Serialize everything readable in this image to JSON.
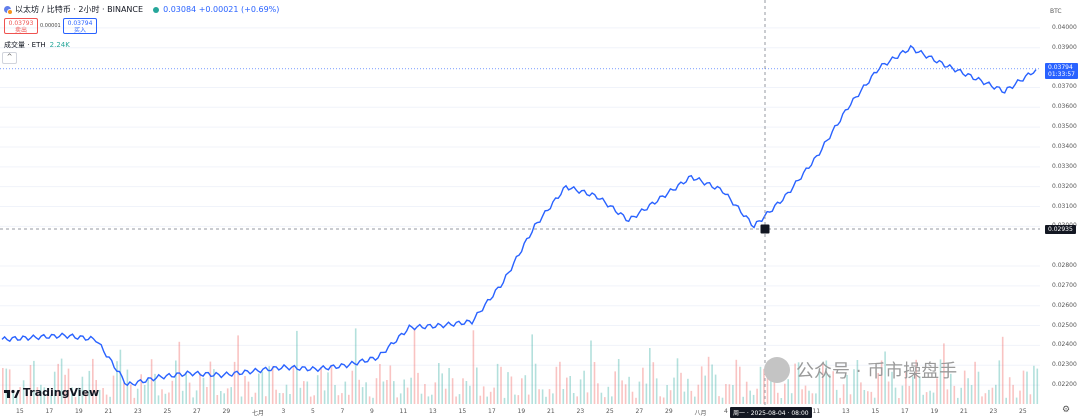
{
  "legend": {
    "symbol": "以太坊 / 比特币 · 2小时 · BINANCE",
    "ohlc": "0.03084 +0.00021 (+0.69%)",
    "sell_price": "0.03793",
    "sell_label": "卖出",
    "spread": "0.00001",
    "buy_price": "0.03794",
    "buy_label": "买入",
    "volume_label": "成交量 · ETH",
    "volume_value": "2.24K",
    "collapse_glyph": "^"
  },
  "colors": {
    "line": "#2962ff",
    "up": "#26a69a",
    "down": "#ef5350",
    "cursor_tag": "#131722",
    "price_tag": "#2962ff"
  },
  "price_axis": {
    "currency": "BTC",
    "ticks": [
      "0.04000",
      "0.03900",
      "0.03700",
      "0.03600",
      "0.03500",
      "0.03400",
      "0.03300",
      "0.03200",
      "0.03100",
      "0.03000",
      "0.02800",
      "0.02700",
      "0.02600",
      "0.02500",
      "0.02400",
      "0.02300",
      "0.02200"
    ],
    "cursor_price": "0.02935",
    "last_price": "0.03794",
    "countdown": "01:33:57"
  },
  "time_axis": {
    "ticks": [
      "15",
      "17",
      "19",
      "21",
      "23",
      "25",
      "27",
      "29",
      "七月",
      "3",
      "5",
      "7",
      "9",
      "11",
      "13",
      "15",
      "17",
      "19",
      "21",
      "23",
      "25",
      "27",
      "29",
      "八月",
      "4",
      "6",
      "9",
      "11",
      "13",
      "15",
      "17",
      "19",
      "21",
      "23",
      "25"
    ],
    "cursor_label": "周一 · 2025-08-04 · 08:00"
  },
  "branding": {
    "logo_text": "TradingView",
    "watermark": "公众号 · 币市操盘手",
    "settings_icon": "gear-icon"
  },
  "chart_data": {
    "type": "line",
    "title": "以太坊 / 比特币 · 2小时 · BINANCE",
    "x": [
      "06-15",
      "06-17",
      "06-19",
      "06-21",
      "06-23",
      "06-25",
      "06-27",
      "06-29",
      "07-01",
      "07-03",
      "07-05",
      "07-07",
      "07-09",
      "07-11",
      "07-13",
      "07-15",
      "07-17",
      "07-19",
      "07-21",
      "07-23",
      "07-25",
      "07-27",
      "07-29",
      "08-01",
      "08-04",
      "08-06",
      "08-09",
      "08-11",
      "08-13",
      "08-15",
      "08-17",
      "08-19",
      "08-21",
      "08-23"
    ],
    "y": [
      0.0243,
      0.0244,
      0.0245,
      0.0243,
      0.022,
      0.0224,
      0.0226,
      0.0225,
      0.0227,
      0.0229,
      0.0228,
      0.023,
      0.0234,
      0.0249,
      0.025,
      0.0252,
      0.0272,
      0.03,
      0.032,
      0.0315,
      0.0303,
      0.0314,
      0.0325,
      0.0318,
      0.03,
      0.0315,
      0.0335,
      0.036,
      0.038,
      0.039,
      0.0382,
      0.0375,
      0.0368,
      0.0379
    ],
    "ylim": [
      0.0215,
      0.0405
    ],
    "volume_note": "volume histogram along bottom"
  }
}
